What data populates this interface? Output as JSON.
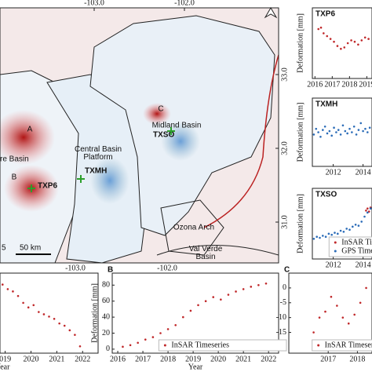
{
  "map": {
    "lon_ticks": [
      {
        "value": -103,
        "label": "-103.0"
      },
      {
        "value": -102,
        "label": "-102.0"
      }
    ],
    "lat_ticks": [
      {
        "value": 33,
        "label": "33.0"
      },
      {
        "value": 32,
        "label": "32.0"
      },
      {
        "value": 31,
        "label": "31.0"
      }
    ],
    "regions": [
      "re Basin",
      "Central Basin Platform",
      "Midland Basin",
      "Ozona Arch",
      "Val Verde Basin"
    ],
    "stations": [
      "TXP6",
      "TXMH",
      "TXSO"
    ],
    "sites": [
      "A",
      "B",
      "C"
    ],
    "scale": "50 km",
    "scale_start": "5"
  },
  "chart_data": [
    {
      "type": "scatter",
      "title": "TXP6",
      "ylabel": "Deformation [mm]",
      "xlim": [
        2015.85,
        2019.3
      ],
      "xticks": [
        2016,
        2017,
        2018,
        2019
      ],
      "ylim": [
        -25,
        25
      ],
      "series": [
        {
          "color": "#c0282a",
          "x": [
            2016.2,
            2016.35,
            2016.5,
            2016.7,
            2016.9,
            2017.1,
            2017.3,
            2017.5,
            2017.7,
            2017.9,
            2018.1,
            2018.3,
            2018.5,
            2018.7,
            2018.9,
            2019.1
          ],
          "values": [
            10,
            11,
            7,
            5,
            3,
            1,
            -2,
            -4,
            -3,
            0,
            2,
            1,
            -1,
            2,
            4,
            3
          ]
        }
      ]
    },
    {
      "type": "scatter",
      "title": "TXMH",
      "ylabel": "Deformation [mm]",
      "xlim": [
        2010.6,
        2014.6
      ],
      "xticks": [
        2012,
        2014
      ],
      "ylim": [
        -30,
        30
      ],
      "series": [
        {
          "color": "#2b6cb8",
          "x": [
            2010.7,
            2010.85,
            2011,
            2011.15,
            2011.3,
            2011.45,
            2011.6,
            2011.75,
            2011.9,
            2012.05,
            2012.2,
            2012.35,
            2012.5,
            2012.65,
            2012.8,
            2012.95,
            2013.1,
            2013.25,
            2013.4,
            2013.55,
            2013.7,
            2013.85,
            2014,
            2014.15,
            2014.3,
            2014.45
          ],
          "values": [
            -2,
            3,
            0,
            -4,
            2,
            5,
            -1,
            1,
            -3,
            4,
            0,
            2,
            -2,
            6,
            1,
            -1,
            3,
            0,
            5,
            -2,
            2,
            8,
            1,
            3,
            0,
            4
          ]
        }
      ]
    },
    {
      "type": "scatter",
      "title": "TXSO",
      "ylabel": "Deformation [mm]",
      "xlim": [
        2010.6,
        2014.6
      ],
      "xticks": [
        2012,
        2014
      ],
      "ylim": [
        -20,
        50
      ],
      "legend": "lower right",
      "series": [
        {
          "name": "InSAR Timeseri",
          "color": "#c0282a",
          "x": [
            2014.2,
            2014.3,
            2014.4,
            2014.5
          ],
          "values": [
            28,
            30,
            27,
            31
          ]
        },
        {
          "name": "GPS Timeseri",
          "color": "#2b6cb8",
          "x": [
            2010.7,
            2010.9,
            2011.1,
            2011.3,
            2011.5,
            2011.7,
            2011.9,
            2012.1,
            2012.3,
            2012.5,
            2012.7,
            2012.9,
            2013.1,
            2013.3,
            2013.5,
            2013.7,
            2013.9,
            2014.1,
            2014.3,
            2014.5
          ],
          "values": [
            0,
            2,
            1,
            3,
            2,
            5,
            4,
            6,
            5,
            8,
            7,
            10,
            9,
            12,
            14,
            13,
            17,
            22,
            26,
            30
          ]
        }
      ]
    },
    {
      "type": "scatter",
      "xlabel": "Year",
      "xlim": [
        2018.8,
        2022.6
      ],
      "xticks": [
        {
          "value": 2019,
          "label": "019"
        },
        2020,
        2021,
        2022
      ],
      "ylim": [
        -30,
        5
      ],
      "series": [
        {
          "color": "#c0282a",
          "x": [
            2018.9,
            2019.1,
            2019.3,
            2019.5,
            2019.7,
            2019.9,
            2020.1,
            2020.3,
            2020.5,
            2020.7,
            2020.9,
            2021.1,
            2021.3,
            2021.5,
            2021.7,
            2021.9
          ],
          "values": [
            0,
            -2,
            -3,
            -5,
            -8,
            -10,
            -9,
            -12,
            -13,
            -14,
            -15,
            -17,
            -18,
            -20,
            -22,
            -27
          ]
        }
      ]
    },
    {
      "type": "scatter",
      "title": "B",
      "ylabel": "Deformation [mm]",
      "xlabel": "Year",
      "xlim": [
        2015.78,
        2022.4
      ],
      "xticks": [
        2016,
        2017,
        2018,
        2019,
        2020,
        2021,
        2022
      ],
      "ylim": [
        -5,
        95
      ],
      "yticks": [
        0,
        20,
        40,
        60,
        80
      ],
      "legend": "lower right",
      "series": [
        {
          "name": "InSAR Timeseries",
          "color": "#c0282a",
          "x": [
            2016.2,
            2016.5,
            2016.8,
            2017.1,
            2017.4,
            2017.7,
            2018.0,
            2018.3,
            2018.6,
            2018.9,
            2019.2,
            2019.5,
            2019.8,
            2020.1,
            2020.4,
            2020.7,
            2021.0,
            2021.3,
            2021.6,
            2021.9
          ],
          "values": [
            3,
            5,
            8,
            12,
            15,
            20,
            25,
            30,
            40,
            48,
            55,
            60,
            65,
            62,
            68,
            72,
            75,
            78,
            80,
            82
          ]
        }
      ]
    },
    {
      "type": "scatter",
      "title": "C",
      "xlim": [
        2015.65,
        2018.5
      ],
      "xticks": [
        2017,
        2018
      ],
      "ylim": [
        -22,
        5
      ],
      "yticks": [
        0,
        -5,
        -10,
        -15
      ],
      "legend": "lower right",
      "series": [
        {
          "name": "InSAR Timeserie",
          "color": "#c0282a",
          "x": [
            2016.5,
            2016.7,
            2016.9,
            2017.1,
            2017.3,
            2017.5,
            2017.7,
            2017.9,
            2018.1,
            2018.3
          ],
          "values": [
            -15,
            -10,
            -8,
            -3,
            -6,
            -10,
            -12,
            -9,
            -5,
            0
          ]
        }
      ]
    }
  ]
}
